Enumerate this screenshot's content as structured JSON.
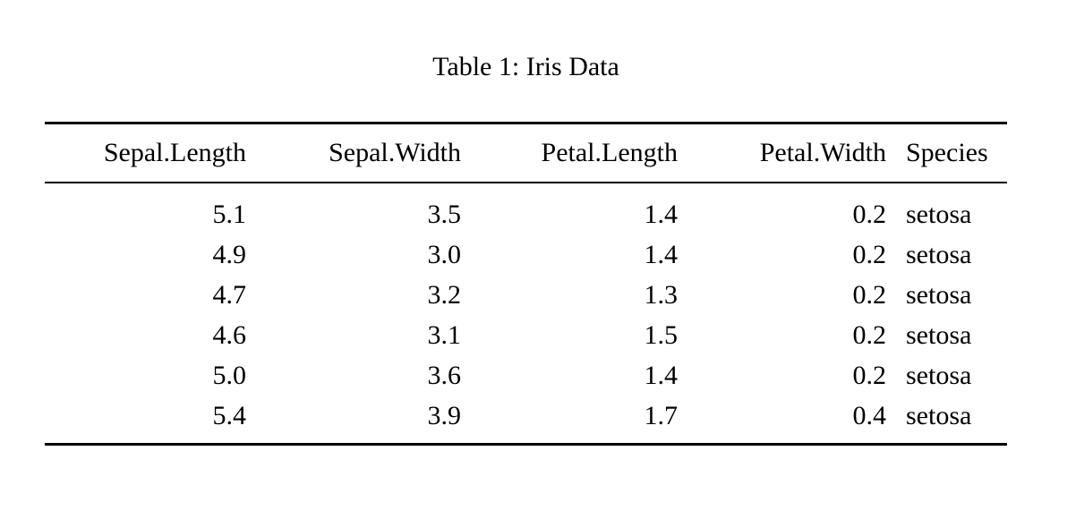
{
  "page": {
    "background": "#ffffff",
    "text_color": "#000000",
    "rule_color": "#000000"
  },
  "caption": "Table 1: Iris Data",
  "table": {
    "columns": [
      {
        "label": "Sepal.Length",
        "align": "right"
      },
      {
        "label": "Sepal.Width",
        "align": "right"
      },
      {
        "label": "Petal.Length",
        "align": "right"
      },
      {
        "label": "Petal.Width",
        "align": "right"
      },
      {
        "label": "Species",
        "align": "left"
      }
    ],
    "rows": [
      [
        "5.1",
        "3.5",
        "1.4",
        "0.2",
        "setosa"
      ],
      [
        "4.9",
        "3.0",
        "1.4",
        "0.2",
        "setosa"
      ],
      [
        "4.7",
        "3.2",
        "1.3",
        "0.2",
        "setosa"
      ],
      [
        "4.6",
        "3.1",
        "1.5",
        "0.2",
        "setosa"
      ],
      [
        "5.0",
        "3.6",
        "1.4",
        "0.2",
        "setosa"
      ],
      [
        "5.4",
        "3.9",
        "1.7",
        "0.4",
        "setosa"
      ]
    ]
  }
}
